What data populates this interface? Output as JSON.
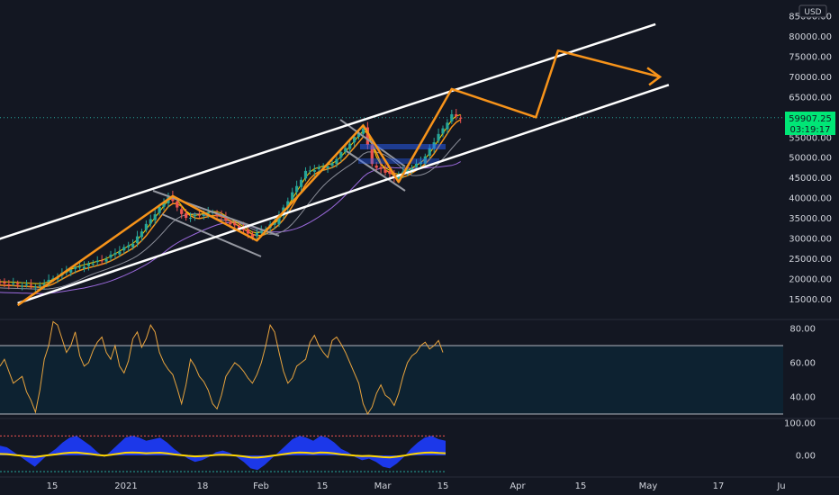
{
  "header": {
    "currency": "USD"
  },
  "price_label": {
    "price": "59907.25",
    "countdown": "03:19:17"
  },
  "colors": {
    "background": "#131722",
    "candle_up": "#26a69a",
    "candle_down": "#ef5350",
    "channel": "#ffffff",
    "path": "#f7931a",
    "rsi": "#e8a33d",
    "price_line": "#26a69a",
    "osc_fill": "#1e3cff"
  },
  "chart_data": [
    {
      "type": "candlestick",
      "title": "",
      "x_ticks": [
        "15",
        "2021",
        "18",
        "Feb",
        "15",
        "Mar",
        "15",
        "Apr",
        "15",
        "May",
        "17",
        "Ju"
      ],
      "y_ticks": [
        "15000.00",
        "20000.00",
        "25000.00",
        "30000.00",
        "35000.00",
        "40000.00",
        "45000.00",
        "50000.00",
        "55000.00",
        "60000.00",
        "65000.00",
        "70000.00",
        "75000.00",
        "80000.00",
        "85000.00"
      ],
      "ylim": [
        10000,
        87000
      ],
      "close_series_approx": [
        {
          "x": "2020-12-01",
          "y": 18900
        },
        {
          "x": "2020-12-10",
          "y": 18300
        },
        {
          "x": "2020-12-17",
          "y": 22500
        },
        {
          "x": "2020-12-24",
          "y": 24500
        },
        {
          "x": "2020-12-31",
          "y": 29000
        },
        {
          "x": "2021-01-08",
          "y": 40500
        },
        {
          "x": "2021-01-12",
          "y": 35000
        },
        {
          "x": "2021-01-18",
          "y": 36500
        },
        {
          "x": "2021-01-27",
          "y": 30500
        },
        {
          "x": "2021-02-01",
          "y": 34000
        },
        {
          "x": "2021-02-08",
          "y": 46500
        },
        {
          "x": "2021-02-14",
          "y": 48500
        },
        {
          "x": "2021-02-21",
          "y": 57500
        },
        {
          "x": "2021-02-23",
          "y": 48500
        },
        {
          "x": "2021-02-28",
          "y": 45000
        },
        {
          "x": "2021-03-06",
          "y": 49000
        },
        {
          "x": "2021-03-13",
          "y": 60500
        },
        {
          "x": "2021-03-15",
          "y": 59907
        }
      ],
      "channel_upper": [
        {
          "x": "2020-11-20",
          "y": 26000
        },
        {
          "x": "2021-04-28",
          "y": 83000
        }
      ],
      "channel_lower": [
        {
          "x": "2020-12-05",
          "y": 14000
        },
        {
          "x": "2021-05-01",
          "y": 68000
        }
      ],
      "projection_path": [
        {
          "x": "2020-12-05",
          "y": 13500
        },
        {
          "x": "2021-01-09",
          "y": 40500
        },
        {
          "x": "2021-01-28",
          "y": 29500
        },
        {
          "x": "2021-02-21",
          "y": 58000
        },
        {
          "x": "2021-03-01",
          "y": 44000
        },
        {
          "x": "2021-03-13",
          "y": 67000
        },
        {
          "x": "2021-04-01",
          "y": 60000
        },
        {
          "x": "2021-04-06",
          "y": 76500
        },
        {
          "x": "2021-04-29",
          "y": 70000
        }
      ]
    },
    {
      "type": "line",
      "title": "",
      "y_ticks": [
        "80.00",
        "60.00",
        "40.00"
      ],
      "ylim": [
        30,
        88
      ],
      "band": [
        30,
        70
      ],
      "series": [
        {
          "values": [
            58,
            62,
            55,
            48,
            50,
            52,
            43,
            38,
            31,
            44,
            62,
            70,
            84,
            82,
            74,
            66,
            70,
            78,
            64,
            58,
            60,
            67,
            72,
            75,
            66,
            62,
            70,
            58,
            54,
            61,
            74,
            78,
            69,
            74,
            82,
            78,
            66,
            60,
            56,
            53,
            45,
            36,
            47,
            62,
            58,
            52,
            49,
            44,
            36,
            33,
            41,
            52,
            56,
            60,
            58,
            55,
            51,
            48,
            53,
            60,
            70,
            82,
            78,
            66,
            55,
            48,
            51,
            58,
            60,
            62,
            72,
            76,
            70,
            66,
            63,
            73,
            75,
            71,
            66,
            60,
            54,
            48,
            36,
            30,
            34,
            42,
            47,
            41,
            39,
            35,
            42,
            52,
            60,
            64,
            66,
            70,
            72,
            68,
            70,
            73,
            66
          ]
        }
      ]
    },
    {
      "type": "area",
      "title": "",
      "y_ticks": [
        "100.00",
        "0.00"
      ],
      "ylim": [
        -60,
        110
      ],
      "series": [
        {
          "values": [
            30,
            25,
            10,
            -5,
            -20,
            -35,
            -15,
            5,
            20,
            40,
            55,
            60,
            45,
            30,
            10,
            -5,
            15,
            35,
            55,
            60,
            55,
            45,
            50,
            55,
            40,
            20,
            5,
            -10,
            -20,
            -15,
            -5,
            10,
            15,
            8,
            -5,
            -20,
            -40,
            -45,
            -30,
            -10,
            10,
            30,
            50,
            60,
            55,
            45,
            60,
            55,
            40,
            20,
            10,
            -5,
            -15,
            -10,
            -20,
            -35,
            -40,
            -25,
            -5,
            20,
            40,
            55,
            60,
            50,
            45
          ]
        }
      ]
    }
  ]
}
